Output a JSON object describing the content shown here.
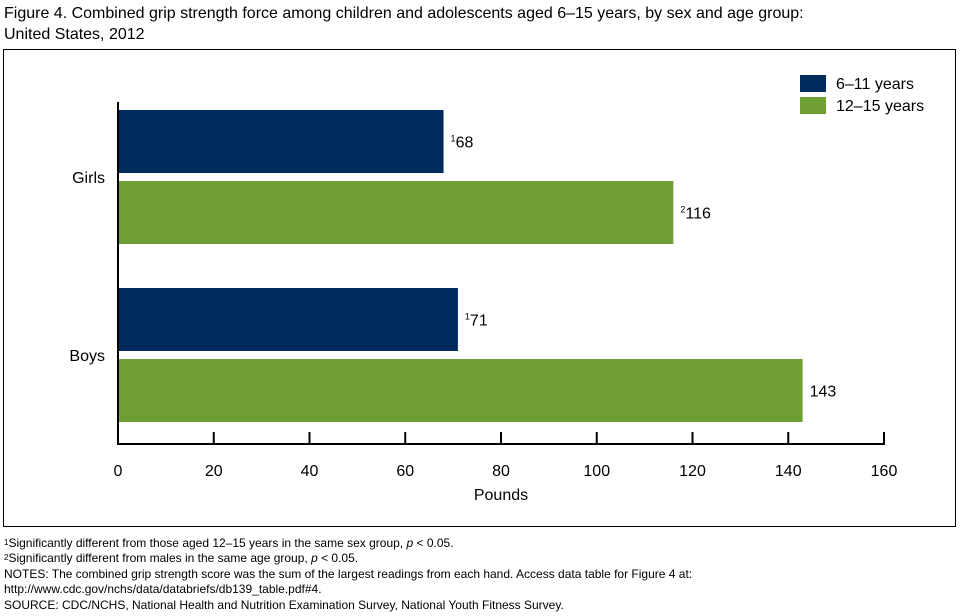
{
  "title_line1": "Figure 4. Combined grip strength force among children and adolescents aged 6–15 years, by sex and age group:",
  "title_line2": "United States, 2012",
  "chart_data": {
    "type": "bar",
    "orientation": "horizontal",
    "categories": [
      "Girls",
      "Boys"
    ],
    "series": [
      {
        "name": "6–11 years",
        "values": [
          68,
          71
        ],
        "labels": [
          "68",
          "71"
        ],
        "footnotes": [
          "1",
          "1"
        ],
        "color": "#002B5C"
      },
      {
        "name": "12–15 years",
        "values": [
          116,
          143
        ],
        "labels": [
          "116",
          "143"
        ],
        "footnotes": [
          "2",
          ""
        ],
        "color": "#6E9E34"
      }
    ],
    "xlabel": "Pounds",
    "ylabel": "",
    "xlim": [
      0,
      160
    ],
    "xticks": [
      0,
      20,
      40,
      60,
      80,
      100,
      120,
      140,
      160
    ],
    "grid": false,
    "legend_position": "top-right"
  },
  "footnotes": {
    "f1_mark": "1",
    "f1_a": "Significantly different from those aged 12–15 years in the same sex group, ",
    "f1_p": "p",
    "f1_b": " < 0.05.",
    "f2_mark": "2",
    "f2_a": "Significantly different from males in the same age group, ",
    "f2_p": "p",
    "f2_b": " < 0.05.",
    "notes1": "NOTES: The combined grip strength score was the sum of the largest readings from each hand. Access data table for Figure 4 at:",
    "notes2": "http://www.cdc.gov/nchs/data/databriefs/db139_table.pdf#4.",
    "source": "SOURCE: CDC/NCHS, National Health and Nutrition Examination Survey, National Youth Fitness Survey."
  }
}
